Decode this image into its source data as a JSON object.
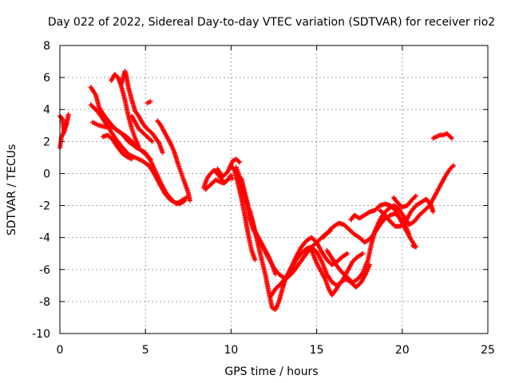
{
  "chart_data": {
    "type": "scatter",
    "title": "Day 022 of 2022, Sidereal Day-to-day VTEC variation (SDTVAR) for receiver rio2",
    "xlabel": "GPS time / hours",
    "ylabel": "SDTVAR / TECUs",
    "xlim": [
      0,
      25
    ],
    "ylim": [
      -10,
      8
    ],
    "xticks": [
      "0",
      "5",
      "10",
      "15",
      "20",
      "25"
    ],
    "yticks": [
      "-10",
      "-8",
      "-6",
      "-4",
      "-2",
      "0",
      "2",
      "4",
      "6",
      "8"
    ],
    "grid": true,
    "marker": "+",
    "color": "#ff0000",
    "tracks": [
      [
        [
          0.0,
          3.6
        ],
        [
          0.15,
          3.4
        ],
        [
          0.25,
          2.6
        ],
        [
          0.35,
          3.0
        ],
        [
          0.45,
          3.4
        ],
        [
          0.5,
          3.7
        ]
      ],
      [
        [
          0.0,
          1.6
        ],
        [
          0.1,
          2.3
        ],
        [
          0.2,
          2.5
        ],
        [
          0.3,
          2.9
        ],
        [
          0.4,
          3.1
        ]
      ],
      [
        [
          1.8,
          5.4
        ],
        [
          2.1,
          4.9
        ],
        [
          2.3,
          4.1
        ],
        [
          2.6,
          3.6
        ],
        [
          2.9,
          3.2
        ],
        [
          3.2,
          2.8
        ],
        [
          3.6,
          2.5
        ],
        [
          4.0,
          2.0
        ],
        [
          4.5,
          1.6
        ],
        [
          5.0,
          1.3
        ],
        [
          5.3,
          0.8
        ],
        [
          5.6,
          0.1
        ],
        [
          5.9,
          -0.6
        ],
        [
          6.2,
          -1.2
        ],
        [
          6.5,
          -1.6
        ],
        [
          6.8,
          -1.9
        ],
        [
          7.1,
          -1.7
        ],
        [
          7.4,
          -1.5
        ]
      ],
      [
        [
          1.8,
          4.3
        ],
        [
          2.1,
          4.0
        ],
        [
          2.4,
          3.6
        ],
        [
          2.7,
          3.1
        ],
        [
          3.0,
          2.6
        ],
        [
          3.3,
          2.1
        ],
        [
          3.6,
          1.7
        ],
        [
          4.0,
          1.2
        ],
        [
          4.4,
          1.0
        ],
        [
          4.8,
          0.8
        ],
        [
          5.2,
          0.5
        ],
        [
          5.5,
          0.0
        ],
        [
          5.8,
          -0.6
        ],
        [
          6.1,
          -1.2
        ],
        [
          6.4,
          -1.6
        ],
        [
          6.7,
          -1.8
        ],
        [
          7.0,
          -1.9
        ],
        [
          7.3,
          -1.7
        ]
      ],
      [
        [
          1.9,
          3.2
        ],
        [
          2.3,
          3.0
        ],
        [
          2.7,
          2.9
        ],
        [
          3.1,
          2.9
        ],
        [
          3.5,
          2.6
        ],
        [
          3.9,
          2.3
        ],
        [
          4.3,
          1.9
        ],
        [
          4.7,
          1.5
        ],
        [
          5.0,
          1.2
        ],
        [
          5.3,
          0.9
        ]
      ],
      [
        [
          2.5,
          2.3
        ],
        [
          2.8,
          2.4
        ],
        [
          3.1,
          2.1
        ],
        [
          3.4,
          1.6
        ],
        [
          3.7,
          1.2
        ],
        [
          4.0,
          1.0
        ],
        [
          4.2,
          0.9
        ]
      ],
      [
        [
          3.0,
          5.8
        ],
        [
          3.2,
          6.2
        ],
        [
          3.4,
          6.0
        ],
        [
          3.6,
          5.4
        ],
        [
          3.8,
          4.6
        ],
        [
          4.0,
          3.6
        ],
        [
          4.2,
          2.8
        ],
        [
          4.4,
          2.2
        ],
        [
          4.6,
          1.7
        ]
      ],
      [
        [
          3.6,
          5.6
        ],
        [
          3.8,
          6.4
        ],
        [
          3.9,
          6.0
        ],
        [
          4.0,
          5.4
        ],
        [
          4.2,
          4.6
        ],
        [
          4.4,
          3.9
        ],
        [
          4.6,
          3.6
        ],
        [
          4.8,
          3.2
        ],
        [
          5.0,
          2.9
        ],
        [
          5.2,
          2.7
        ],
        [
          5.4,
          2.5
        ],
        [
          5.6,
          2.2
        ],
        [
          5.8,
          1.9
        ],
        [
          6.0,
          1.3
        ]
      ],
      [
        [
          4.2,
          3.6
        ],
        [
          4.4,
          3.2
        ],
        [
          4.6,
          2.8
        ],
        [
          4.8,
          2.6
        ],
        [
          5.0,
          2.4
        ],
        [
          5.2,
          2.2
        ],
        [
          5.4,
          2.0
        ]
      ],
      [
        [
          5.1,
          4.4
        ],
        [
          5.3,
          4.5
        ]
      ],
      [
        [
          5.7,
          3.3
        ],
        [
          5.9,
          3.0
        ],
        [
          6.1,
          2.6
        ],
        [
          6.3,
          2.2
        ],
        [
          6.5,
          1.8
        ],
        [
          6.7,
          1.3
        ],
        [
          6.9,
          0.6
        ],
        [
          7.1,
          0.0
        ],
        [
          7.3,
          -0.6
        ],
        [
          7.5,
          -1.2
        ],
        [
          7.6,
          -1.7
        ]
      ],
      [
        [
          8.4,
          -0.9
        ],
        [
          8.6,
          -0.3
        ],
        [
          8.8,
          0.0
        ],
        [
          9.0,
          0.2
        ],
        [
          9.2,
          0.0
        ],
        [
          9.4,
          -0.3
        ],
        [
          9.6,
          -0.6
        ],
        [
          9.8,
          -0.4
        ],
        [
          10.0,
          -0.1
        ]
      ],
      [
        [
          8.5,
          -1.0
        ],
        [
          8.7,
          -0.8
        ],
        [
          8.9,
          -0.6
        ],
        [
          9.1,
          -0.4
        ],
        [
          9.3,
          -0.5
        ],
        [
          9.5,
          -0.6
        ],
        [
          9.7,
          -0.5
        ],
        [
          9.9,
          -0.3
        ],
        [
          10.1,
          -0.3
        ]
      ],
      [
        [
          9.2,
          0.3
        ],
        [
          9.5,
          -0.2
        ],
        [
          9.8,
          0.1
        ],
        [
          10.1,
          0.8
        ],
        [
          10.3,
          0.9
        ],
        [
          10.5,
          0.7
        ]
      ],
      [
        [
          10.0,
          0.5
        ],
        [
          10.2,
          0.2
        ],
        [
          10.4,
          -0.6
        ],
        [
          10.6,
          -1.5
        ],
        [
          10.8,
          -2.6
        ],
        [
          11.0,
          -3.8
        ],
        [
          11.2,
          -4.8
        ],
        [
          11.4,
          -5.4
        ]
      ],
      [
        [
          10.3,
          0.4
        ],
        [
          10.5,
          -0.2
        ],
        [
          10.7,
          -1.0
        ],
        [
          10.9,
          -1.9
        ],
        [
          11.1,
          -2.8
        ],
        [
          11.3,
          -3.5
        ],
        [
          11.5,
          -3.9
        ],
        [
          11.7,
          -4.3
        ],
        [
          11.9,
          -4.7
        ],
        [
          12.1,
          -5.1
        ],
        [
          12.3,
          -5.5
        ],
        [
          12.5,
          -5.9
        ],
        [
          12.8,
          -6.3
        ],
        [
          13.2,
          -6.6
        ],
        [
          13.6,
          -6.2
        ],
        [
          14.0,
          -5.6
        ],
        [
          14.4,
          -5.0
        ],
        [
          14.8,
          -4.5
        ],
        [
          15.2,
          -4.1
        ],
        [
          15.5,
          -3.8
        ],
        [
          15.8,
          -3.6
        ]
      ],
      [
        [
          10.6,
          -0.3
        ],
        [
          10.8,
          -1.2
        ],
        [
          11.0,
          -2.0
        ],
        [
          11.2,
          -2.9
        ],
        [
          11.4,
          -3.6
        ],
        [
          11.6,
          -4.0
        ],
        [
          11.8,
          -4.4
        ],
        [
          12.0,
          -4.8
        ],
        [
          12.2,
          -5.2
        ],
        [
          12.4,
          -5.7
        ],
        [
          12.6,
          -6.3
        ]
      ],
      [
        [
          11.1,
          -2.3
        ],
        [
          11.4,
          -3.6
        ],
        [
          11.7,
          -5.0
        ],
        [
          12.0,
          -6.3
        ],
        [
          12.2,
          -7.4
        ],
        [
          12.4,
          -8.4
        ],
        [
          12.6,
          -8.5
        ],
        [
          12.8,
          -8.0
        ],
        [
          13.0,
          -7.2
        ],
        [
          13.2,
          -6.5
        ],
        [
          13.5,
          -6.0
        ],
        [
          13.8,
          -5.4
        ],
        [
          14.1,
          -5.0
        ],
        [
          14.4,
          -4.7
        ],
        [
          14.7,
          -4.6
        ],
        [
          15.0,
          -4.9
        ],
        [
          15.3,
          -5.5
        ],
        [
          15.6,
          -6.3
        ],
        [
          15.9,
          -6.8
        ],
        [
          16.2,
          -7.0
        ],
        [
          16.5,
          -6.7
        ],
        [
          16.8,
          -6.1
        ],
        [
          17.1,
          -5.5
        ],
        [
          17.4,
          -5.2
        ],
        [
          17.7,
          -5.0
        ]
      ],
      [
        [
          12.3,
          -7.7
        ],
        [
          12.6,
          -7.2
        ],
        [
          12.9,
          -6.9
        ],
        [
          13.2,
          -6.5
        ],
        [
          13.5,
          -5.9
        ],
        [
          13.8,
          -5.2
        ],
        [
          14.1,
          -4.6
        ],
        [
          14.4,
          -4.2
        ],
        [
          14.7,
          -4.0
        ],
        [
          15.0,
          -4.3
        ],
        [
          15.3,
          -4.9
        ],
        [
          15.6,
          -5.4
        ],
        [
          15.9,
          -5.7
        ],
        [
          16.2,
          -5.5
        ],
        [
          16.5,
          -5.2
        ],
        [
          16.8,
          -5.0
        ]
      ],
      [
        [
          14.7,
          -4.8
        ],
        [
          15.0,
          -5.6
        ],
        [
          15.3,
          -6.2
        ],
        [
          15.5,
          -6.6
        ],
        [
          15.7,
          -7.2
        ],
        [
          15.9,
          -7.6
        ],
        [
          16.1,
          -7.3
        ],
        [
          16.4,
          -6.8
        ],
        [
          16.7,
          -6.6
        ],
        [
          17.0,
          -6.8
        ],
        [
          17.3,
          -7.1
        ],
        [
          17.6,
          -6.8
        ],
        [
          17.9,
          -6.2
        ],
        [
          18.1,
          -5.7
        ]
      ],
      [
        [
          15.6,
          -4.8
        ],
        [
          15.9,
          -5.3
        ],
        [
          16.2,
          -5.8
        ],
        [
          16.5,
          -6.2
        ],
        [
          16.8,
          -6.5
        ],
        [
          17.1,
          -6.8
        ],
        [
          17.4,
          -6.6
        ],
        [
          17.7,
          -6.2
        ],
        [
          18.0,
          -5.4
        ],
        [
          18.2,
          -4.4
        ],
        [
          18.4,
          -3.6
        ],
        [
          18.6,
          -3.1
        ],
        [
          18.8,
          -2.7
        ],
        [
          19.0,
          -2.4
        ],
        [
          19.2,
          -2.2
        ],
        [
          19.5,
          -2.0
        ],
        [
          19.8,
          -2.2
        ],
        [
          20.1,
          -2.7
        ],
        [
          20.4,
          -3.2
        ],
        [
          20.7,
          -3.0
        ],
        [
          21.0,
          -2.6
        ],
        [
          21.3,
          -2.3
        ],
        [
          21.6,
          -2.0
        ],
        [
          21.9,
          -1.4
        ],
        [
          22.2,
          -0.8
        ],
        [
          22.5,
          -0.2
        ],
        [
          22.8,
          0.3
        ],
        [
          23.0,
          0.5
        ]
      ],
      [
        [
          15.4,
          -4.0
        ],
        [
          15.7,
          -3.6
        ],
        [
          16.0,
          -3.3
        ],
        [
          16.3,
          -3.1
        ],
        [
          16.6,
          -3.2
        ],
        [
          16.9,
          -3.5
        ],
        [
          17.2,
          -3.8
        ],
        [
          17.5,
          -4.0
        ],
        [
          17.8,
          -4.3
        ],
        [
          18.1,
          -4.1
        ],
        [
          18.4,
          -3.7
        ],
        [
          18.7,
          -3.2
        ],
        [
          19.0,
          -2.8
        ],
        [
          19.3,
          -2.6
        ],
        [
          19.6,
          -2.5
        ],
        [
          19.9,
          -2.8
        ],
        [
          20.2,
          -3.3
        ],
        [
          20.4,
          -3.8
        ]
      ],
      [
        [
          17.0,
          -2.9
        ],
        [
          17.2,
          -2.6
        ],
        [
          17.5,
          -2.8
        ],
        [
          17.8,
          -2.6
        ],
        [
          18.1,
          -2.4
        ],
        [
          18.4,
          -2.3
        ],
        [
          18.7,
          -2.0
        ],
        [
          19.0,
          -1.9
        ],
        [
          19.3,
          -2.0
        ],
        [
          19.6,
          -2.3
        ],
        [
          19.9,
          -2.9
        ],
        [
          20.2,
          -3.5
        ],
        [
          20.5,
          -4.1
        ],
        [
          20.8,
          -4.6
        ],
        [
          20.6,
          -4.5
        ]
      ],
      [
        [
          18.7,
          -2.3
        ],
        [
          19.0,
          -2.6
        ],
        [
          19.3,
          -3.0
        ],
        [
          19.6,
          -3.3
        ],
        [
          19.9,
          -3.3
        ],
        [
          20.2,
          -3.0
        ],
        [
          20.5,
          -2.4
        ],
        [
          20.8,
          -2.0
        ],
        [
          21.1,
          -1.8
        ],
        [
          21.4,
          -1.6
        ],
        [
          21.7,
          -2.0
        ],
        [
          21.8,
          -2.4
        ]
      ],
      [
        [
          19.5,
          -1.5
        ],
        [
          19.7,
          -1.8
        ],
        [
          20.0,
          -2.1
        ],
        [
          20.3,
          -2.0
        ],
        [
          20.6,
          -1.6
        ],
        [
          20.8,
          -1.4
        ]
      ],
      [
        [
          21.8,
          2.2
        ],
        [
          22.0,
          2.3
        ],
        [
          22.2,
          2.4
        ],
        [
          22.4,
          2.4
        ],
        [
          22.6,
          2.5
        ],
        [
          22.8,
          2.3
        ],
        [
          22.9,
          2.2
        ]
      ]
    ]
  }
}
